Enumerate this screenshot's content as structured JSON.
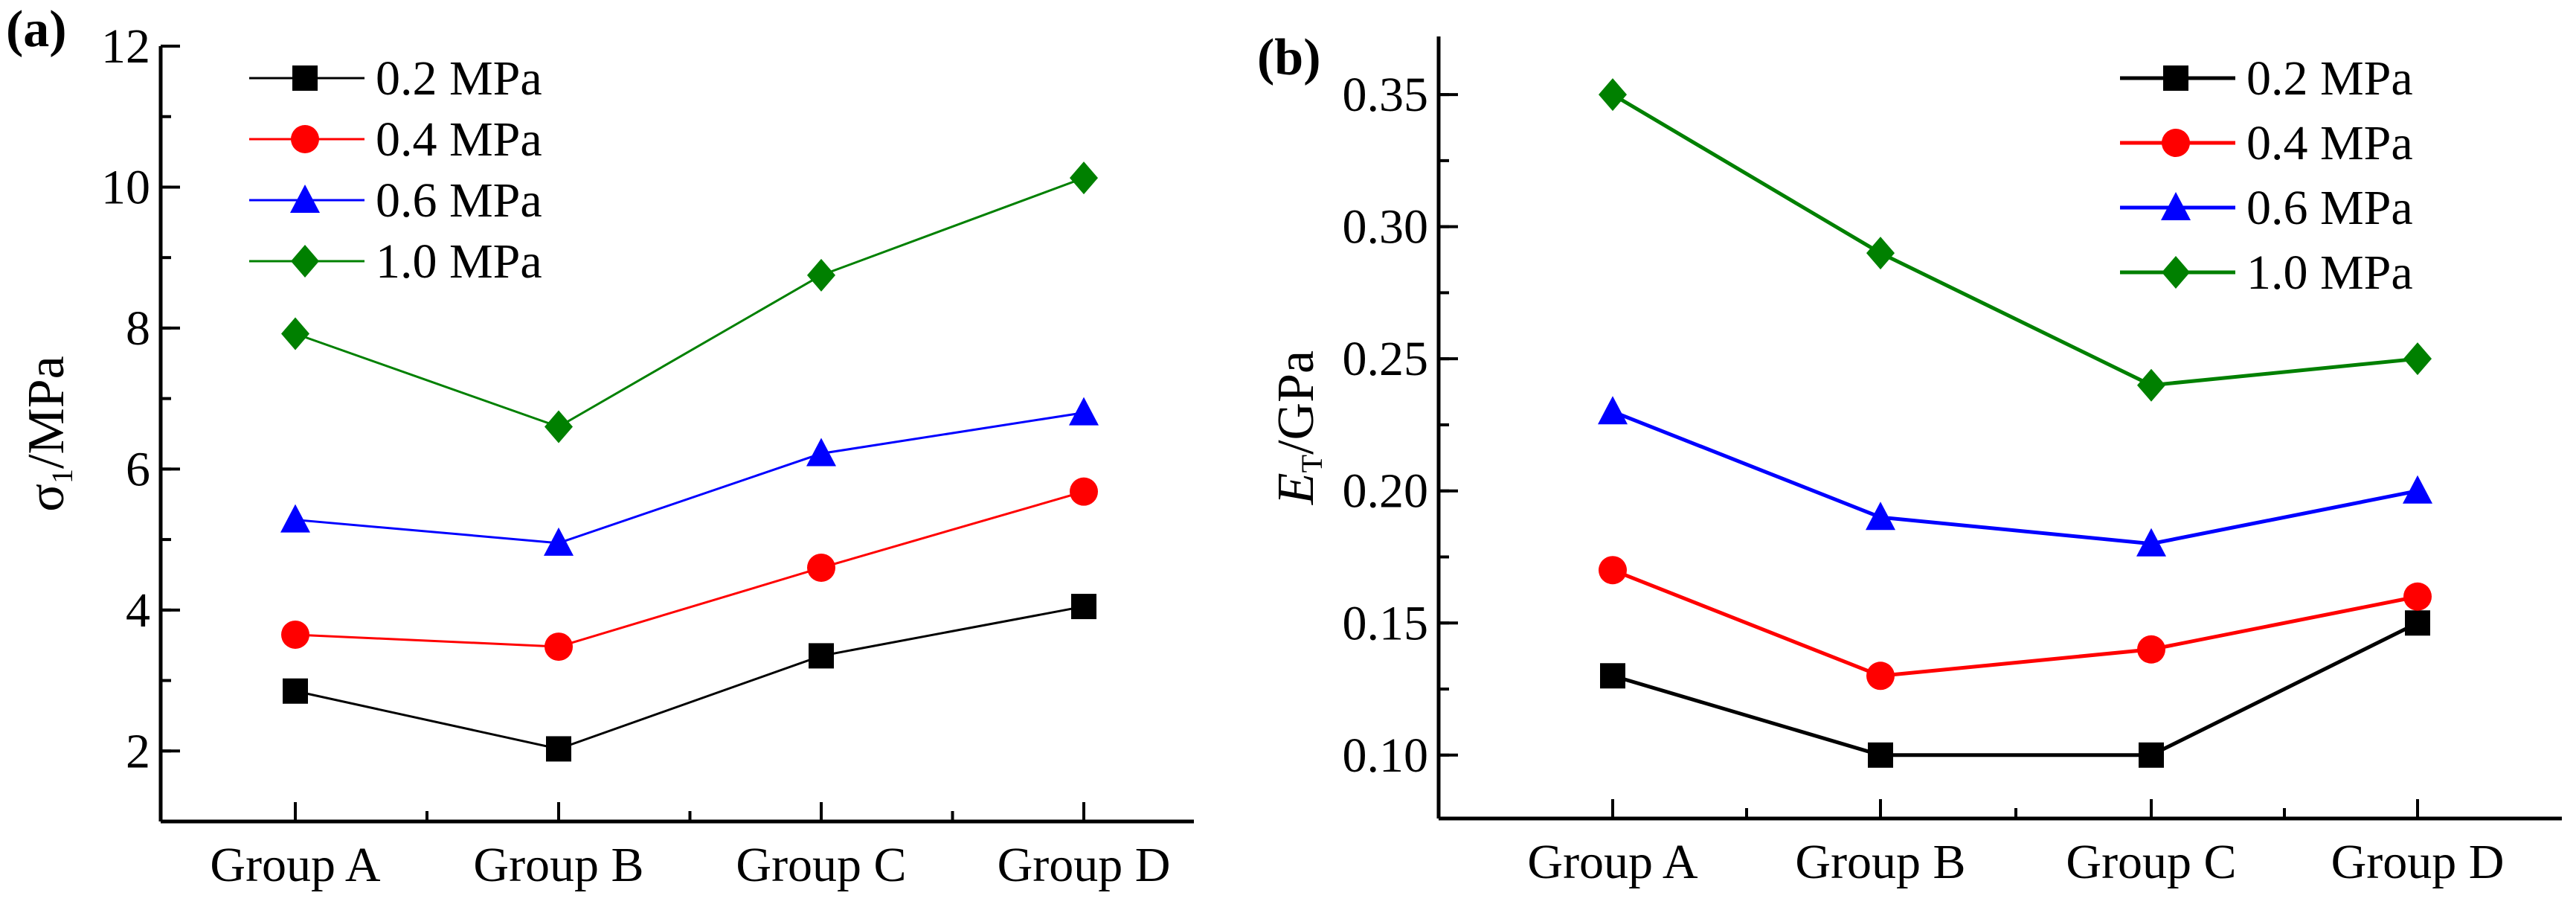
{
  "chart_data": [
    {
      "type": "line",
      "panel_label": "(a)",
      "ylabel_main": "σ",
      "ylabel_sub": "1",
      "ylabel_rest": "/MPa",
      "categories": [
        "Group A",
        "Group B",
        "Group C",
        "Group D"
      ],
      "ylim": [
        1,
        12
      ],
      "yticks": [
        2,
        4,
        6,
        8,
        10,
        12
      ],
      "legend_position": "top-left",
      "series": [
        {
          "name": "0.2 MPa",
          "color": "#000000",
          "marker": "square",
          "values": [
            2.85,
            2.03,
            3.35,
            4.05
          ]
        },
        {
          "name": "0.4 MPa",
          "color": "#ff0000",
          "marker": "circle",
          "values": [
            3.65,
            3.48,
            4.6,
            5.68
          ]
        },
        {
          "name": "0.6 MPa",
          "color": "#0000ff",
          "marker": "triangle",
          "values": [
            5.28,
            4.95,
            6.22,
            6.8
          ]
        },
        {
          "name": "1.0 MPa",
          "color": "#008000",
          "marker": "diamond",
          "values": [
            7.92,
            6.6,
            8.75,
            10.13
          ]
        }
      ]
    },
    {
      "type": "line",
      "panel_label": "(b)",
      "ylabel_main": "E",
      "ylabel_sub": "T",
      "ylabel_rest": "/GPa",
      "categories": [
        "Group A",
        "Group B",
        "Group C",
        "Group D"
      ],
      "ylim": [
        0.076,
        0.372
      ],
      "yticks": [
        "0.10",
        "0.15",
        "0.20",
        "0.25",
        "0.30",
        "0.35"
      ],
      "legend_position": "top-right",
      "series": [
        {
          "name": "0.2 MPa",
          "color": "#000000",
          "marker": "square",
          "values": [
            0.13,
            0.1,
            0.1,
            0.15
          ]
        },
        {
          "name": "0.4 MPa",
          "color": "#ff0000",
          "marker": "circle",
          "values": [
            0.17,
            0.13,
            0.14,
            0.16
          ]
        },
        {
          "name": "0.6 MPa",
          "color": "#0000ff",
          "marker": "triangle",
          "values": [
            0.23,
            0.19,
            0.18,
            0.2
          ]
        },
        {
          "name": "1.0 MPa",
          "color": "#008000",
          "marker": "diamond",
          "values": [
            0.35,
            0.29,
            0.24,
            0.25
          ]
        }
      ]
    }
  ]
}
